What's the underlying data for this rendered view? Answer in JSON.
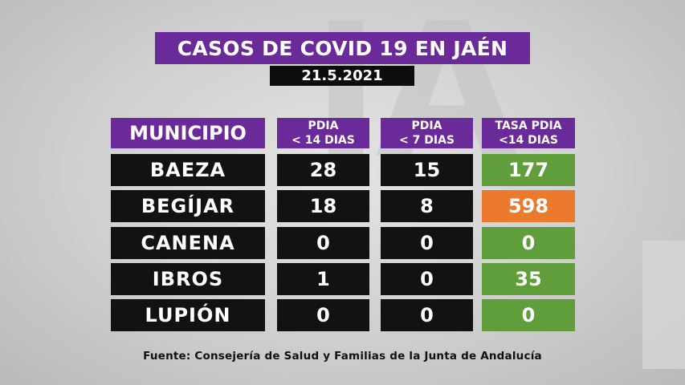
{
  "title": "CASOS DE COVID 19 EN JAÉN",
  "date": "21.5.2021",
  "table": {
    "headers": {
      "municipio": "MUNICIPIO",
      "pdia14_line1": "PDIA",
      "pdia14_line2": "< 14 DIAS",
      "pdia7_line1": "PDIA",
      "pdia7_line2": "< 7 DIAS",
      "tasa_line1": "TASA PDIA",
      "tasa_line2": "<14 DIAS"
    },
    "rows": [
      {
        "municipio": "BAEZA",
        "pdia14": "28",
        "pdia7": "15",
        "tasa": "177"
      },
      {
        "municipio": "BEGÍJAR",
        "pdia14": "18",
        "pdia7": "8",
        "tasa": "598"
      },
      {
        "municipio": "CANENA",
        "pdia14": "0",
        "pdia7": "0",
        "tasa": "0"
      },
      {
        "municipio": "IBROS",
        "pdia14": "1",
        "pdia7": "0",
        "tasa": "35"
      },
      {
        "municipio": "LUPIÓN",
        "pdia14": "0",
        "pdia7": "0",
        "tasa": "0"
      }
    ]
  },
  "source": "Fuente:  Consejería de Salud y Familias de la Junta de Andalucía",
  "colors": {
    "header_purple": "#6a2a9a",
    "row_black": "#121212",
    "tasa_green": "#5f9e3a",
    "tasa_orange": "#ec7a2c"
  }
}
